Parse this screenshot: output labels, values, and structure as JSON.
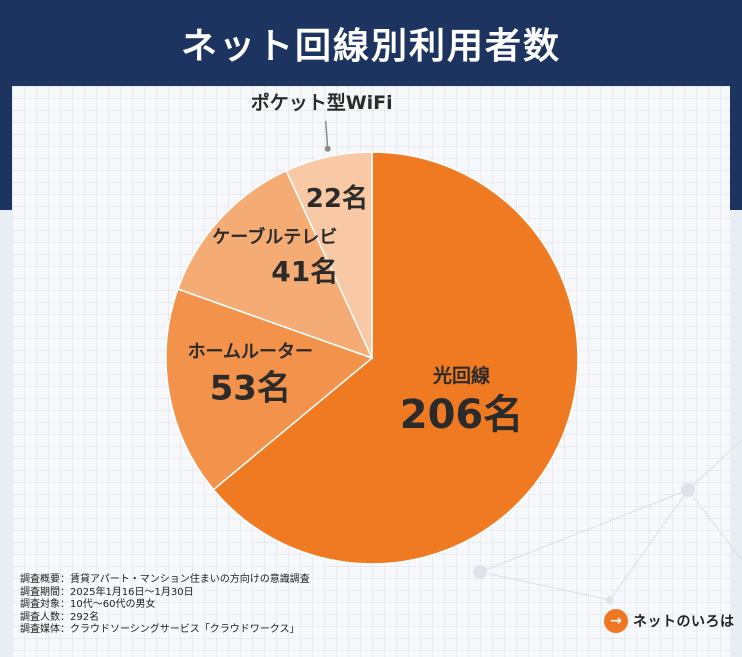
{
  "header": {
    "title": "ネット回線別利用者数"
  },
  "chart_data": {
    "type": "pie",
    "title": "ネット回線別利用者数",
    "unit": "名",
    "slices": [
      {
        "label": "光回線",
        "value": 206,
        "value_text": "206名",
        "color": "#f07a21"
      },
      {
        "label": "ホームルーター",
        "value": 53,
        "value_text": "53名",
        "color": "#f2924b"
      },
      {
        "label": "ケーブルテレビ",
        "value": 41,
        "value_text": "41名",
        "color": "#f5ab74"
      },
      {
        "label": "ポケット型WiFi",
        "value": 22,
        "value_text": "22名",
        "color": "#f8c9a4"
      }
    ]
  },
  "notes": [
    "調査概要：賃貸アパート・マンション住まいの方向けの意識調査",
    "調査期間：2025年1月16日～1月30日",
    "調査対象：10代～60代の男女",
    "調査人数：292名",
    "調査媒体：クラウドソーシングサービス「クラウドワークス」"
  ],
  "logo": {
    "mark": "→",
    "text": "ネットのいろは"
  }
}
